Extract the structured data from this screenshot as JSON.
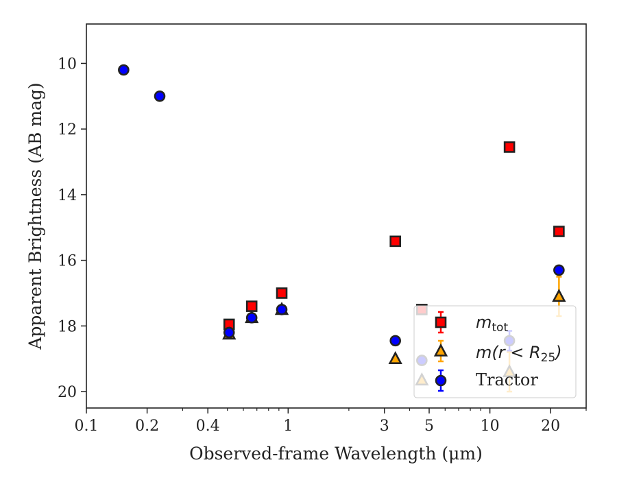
{
  "chart_data": {
    "type": "scatter",
    "title": "",
    "xlabel": "Observed-frame Wavelength (μm)",
    "ylabel": "Apparent Brightness (AB mag)",
    "xscale": "log",
    "xlim": [
      0.1,
      30
    ],
    "ylim": [
      20.5,
      8.8
    ],
    "y_inverted": true,
    "grid": false,
    "legend_position": "lower-right",
    "x_ticks": [
      {
        "value": 0.1,
        "label": "0.1"
      },
      {
        "value": 0.2,
        "label": "0.2"
      },
      {
        "value": 0.4,
        "label": "0.4"
      },
      {
        "value": 1,
        "label": "1"
      },
      {
        "value": 3,
        "label": "3"
      },
      {
        "value": 5,
        "label": "5"
      },
      {
        "value": 10,
        "label": "10"
      },
      {
        "value": 20,
        "label": "20"
      }
    ],
    "y_ticks": [
      {
        "value": 10,
        "label": "10"
      },
      {
        "value": 12,
        "label": "12"
      },
      {
        "value": 14,
        "label": "14"
      },
      {
        "value": 16,
        "label": "16"
      },
      {
        "value": 18,
        "label": "18"
      },
      {
        "value": 20,
        "label": "20"
      }
    ],
    "series": [
      {
        "name": "m_tot",
        "marker": "square",
        "fill": "#ff0000",
        "edge": "#222222",
        "error_color": "#ff0000",
        "points": [
          {
            "x": 0.51,
            "y": 17.95,
            "err": 0.02
          },
          {
            "x": 0.66,
            "y": 17.4,
            "err": 0.02
          },
          {
            "x": 0.93,
            "y": 17.0,
            "err": 0.02
          },
          {
            "x": 3.4,
            "y": 15.42,
            "err": 0.02
          },
          {
            "x": 4.6,
            "y": 17.5,
            "err": 0.02
          },
          {
            "x": 12.5,
            "y": 12.55,
            "err": 0.02
          },
          {
            "x": 22.0,
            "y": 15.12,
            "err": 0.03
          }
        ]
      },
      {
        "name": "m(r < R25)",
        "marker": "triangle",
        "fill": "#ffa500",
        "edge": "#222222",
        "error_color": "#ffa500",
        "points": [
          {
            "x": 0.51,
            "y": 18.25,
            "err": 0.02
          },
          {
            "x": 0.66,
            "y": 17.75,
            "err": 0.02
          },
          {
            "x": 0.93,
            "y": 17.5,
            "err": 0.02
          },
          {
            "x": 3.4,
            "y": 19.0,
            "err": 0.03
          },
          {
            "x": 4.6,
            "y": 19.65,
            "err": 0.05
          },
          {
            "x": 12.5,
            "y": 19.4,
            "err": 0.6
          },
          {
            "x": 22.0,
            "y": 17.1,
            "err": 0.6
          }
        ]
      },
      {
        "name": "Tractor",
        "marker": "circle",
        "fill": "#0000ff",
        "edge": "#222222",
        "error_color": "#0000ff",
        "points": [
          {
            "x": 0.153,
            "y": 10.2,
            "err": 0.02
          },
          {
            "x": 0.231,
            "y": 11.0,
            "err": 0.02
          },
          {
            "x": 0.51,
            "y": 18.2,
            "err": 0.02
          },
          {
            "x": 0.66,
            "y": 17.75,
            "err": 0.02
          },
          {
            "x": 0.93,
            "y": 17.5,
            "err": 0.02
          },
          {
            "x": 3.4,
            "y": 18.45,
            "err": 0.02
          },
          {
            "x": 4.6,
            "y": 19.05,
            "err": 0.03
          },
          {
            "x": 12.5,
            "y": 18.45,
            "err": 0.3
          },
          {
            "x": 22.0,
            "y": 16.3,
            "err": 0.08
          }
        ]
      }
    ],
    "legend": [
      {
        "symbol": "m",
        "sub": "tot",
        "text": ""
      },
      {
        "symbol": "m(r < R",
        "sub": "25",
        "text": ")"
      },
      {
        "symbol": "",
        "sub": "",
        "text": "Tractor"
      }
    ]
  }
}
